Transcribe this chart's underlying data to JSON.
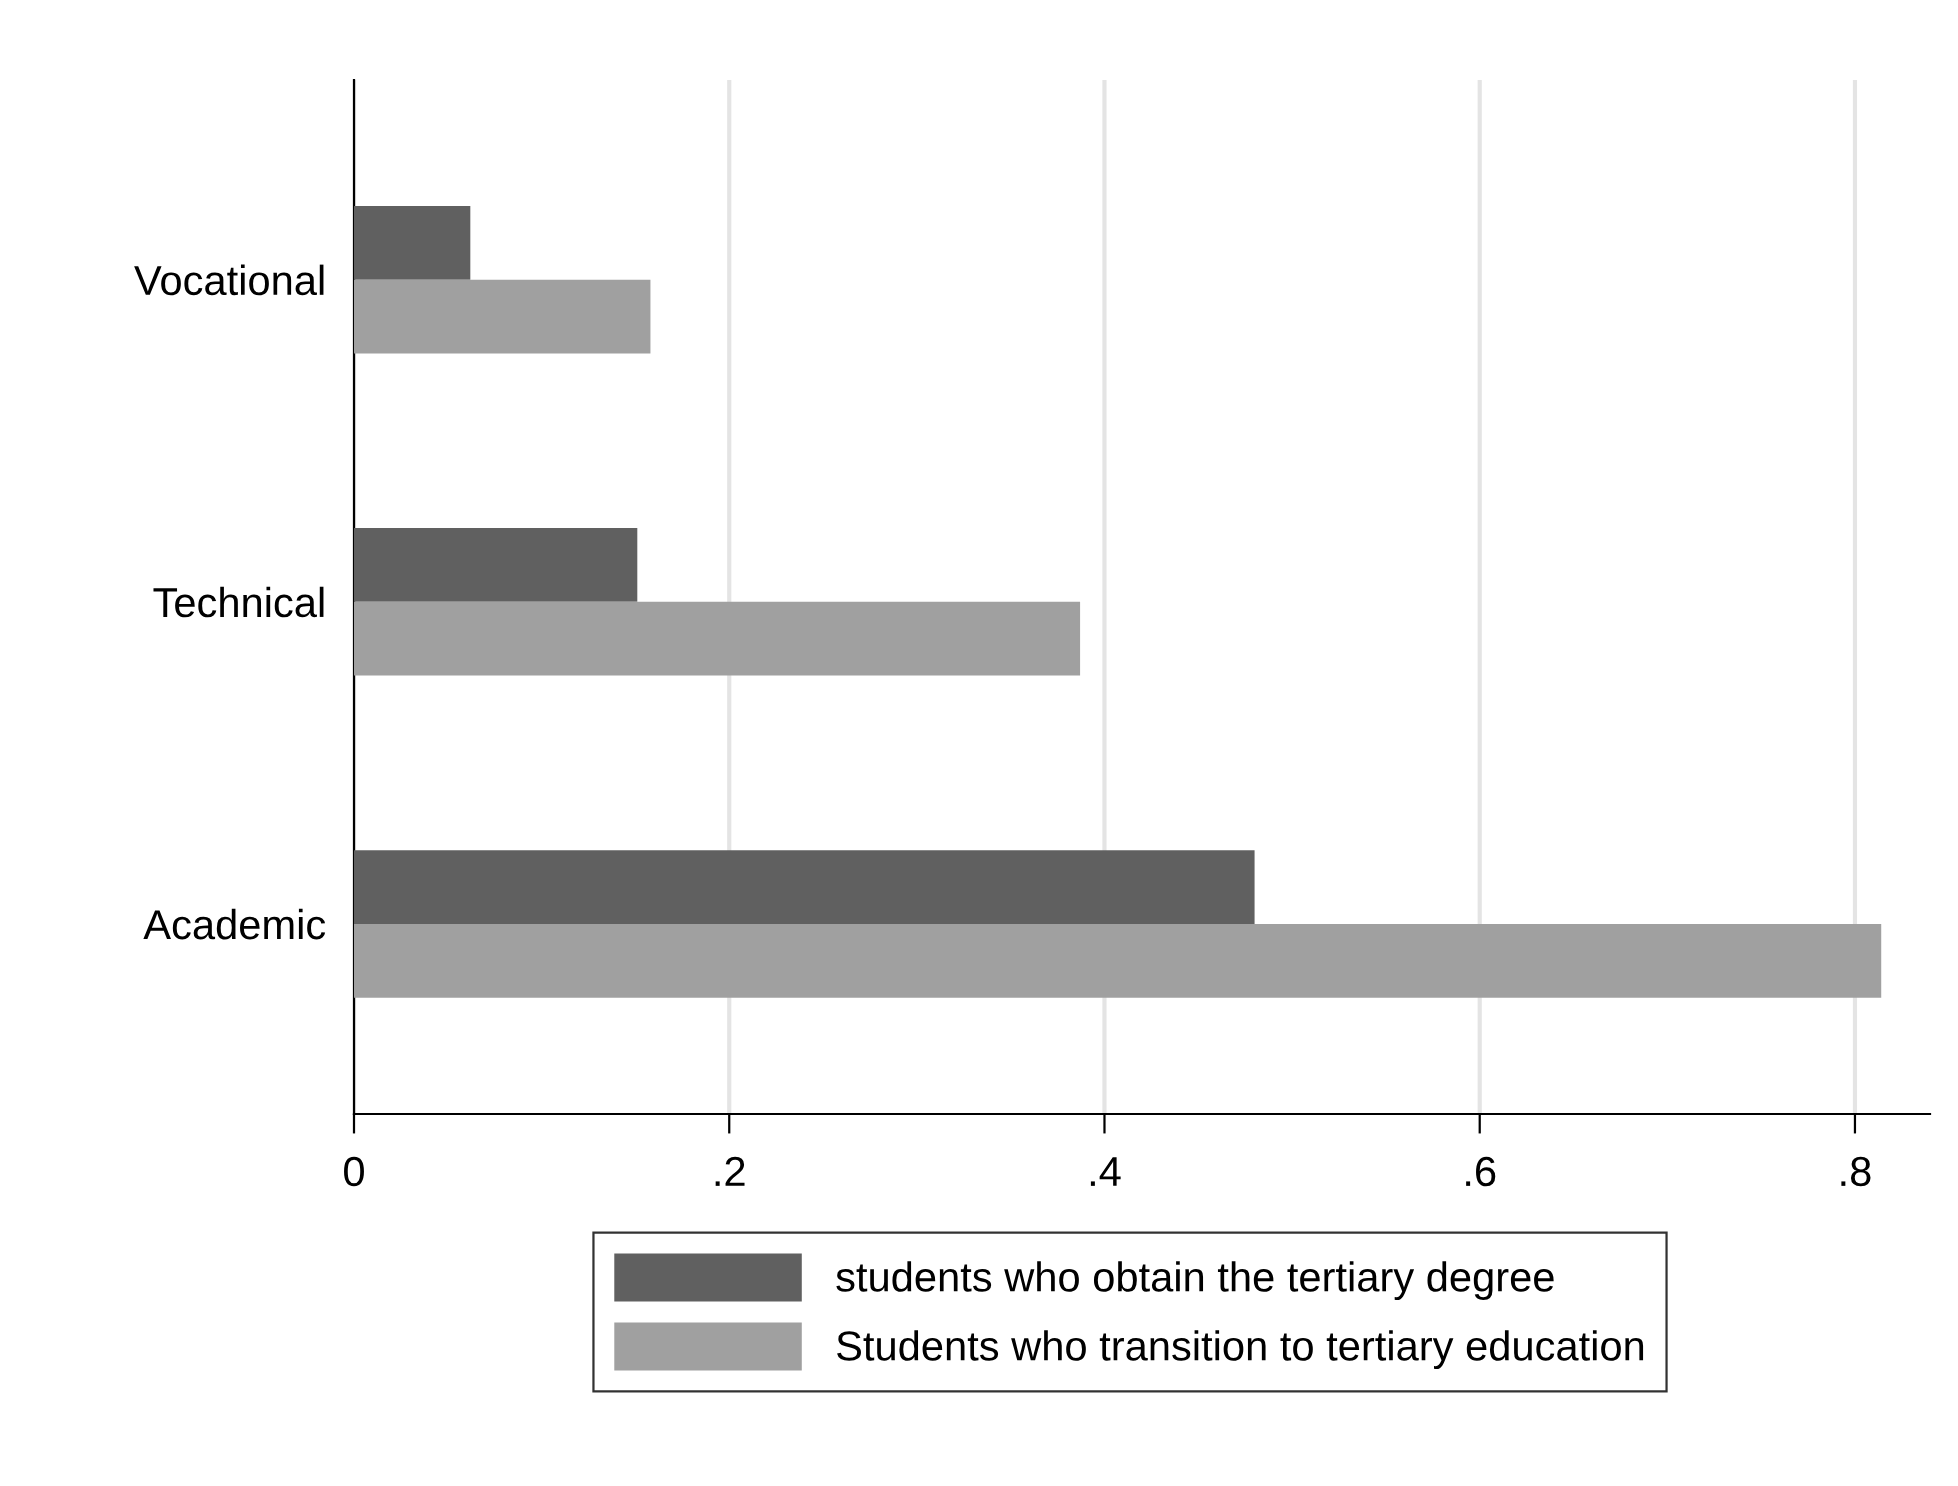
{
  "chart_data": {
    "type": "bar",
    "orientation": "horizontal",
    "categories": [
      "Vocational",
      "Technical",
      "Academic"
    ],
    "series": [
      {
        "name": "students who obtain the tertiary degree",
        "color": "#606060",
        "values": [
          0.062,
          0.151,
          0.48
        ]
      },
      {
        "name": "Students who transition to tertiary education",
        "color": "#a0a0a0",
        "values": [
          0.158,
          0.387,
          0.814
        ]
      }
    ],
    "xlim": [
      0,
      0.84
    ],
    "xticks": [
      0,
      {
        "value": 0.2,
        "label": ".2"
      },
      {
        "value": 0.4,
        "label": ".4"
      },
      {
        "value": 0.6,
        "label": ".6"
      },
      {
        "value": 0.8,
        "label": ".8"
      }
    ],
    "grid": "x",
    "legend": "bottom"
  }
}
